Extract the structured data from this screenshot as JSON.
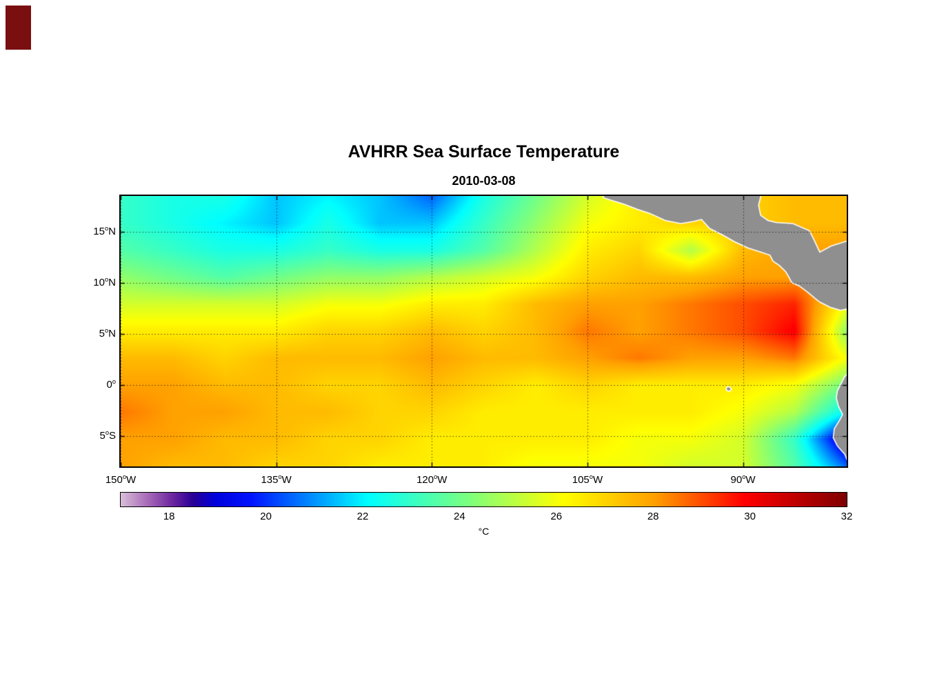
{
  "figure": {
    "title": "AVHRR Sea Surface Temperature",
    "date": "2010-03-08"
  },
  "artifact": {
    "color": "#7a0f10"
  },
  "axes": {
    "degree_symbol": "o",
    "yticks": [
      {
        "num": "15",
        "suffix": "N",
        "lat": 15
      },
      {
        "num": "10",
        "suffix": "N",
        "lat": 10
      },
      {
        "num": "5",
        "suffix": "N",
        "lat": 5
      },
      {
        "num": "0",
        "suffix": "",
        "lat": 0
      },
      {
        "num": "5",
        "suffix": "S",
        "lat": -5
      }
    ],
    "xticks": [
      {
        "num": "150",
        "suffix": "W",
        "lon": -150
      },
      {
        "num": "135",
        "suffix": "W",
        "lon": -135
      },
      {
        "num": "120",
        "suffix": "W",
        "lon": -120
      },
      {
        "num": "105",
        "suffix": "W",
        "lon": -105
      },
      {
        "num": "90",
        "suffix": "W",
        "lon": -90
      }
    ]
  },
  "colorbar": {
    "label": "°C",
    "min": 17,
    "max": 32,
    "tick_values": [
      18,
      20,
      22,
      24,
      26,
      28,
      30,
      32
    ]
  },
  "chart_data": {
    "type": "heatmap",
    "title": "AVHRR Sea Surface Temperature",
    "subtitle": "2010-03-08",
    "units": "°C",
    "lon_range": [
      -150,
      -80
    ],
    "lat_range": [
      -8,
      18.5
    ],
    "grid_lons": [
      -150,
      -145,
      -140,
      -135,
      -130,
      -125,
      -120,
      -115,
      -110,
      -105,
      -100,
      -95,
      -90,
      -85,
      -80
    ],
    "grid_lats": [
      18.5,
      15.85,
      13.2,
      10.55,
      7.9,
      5.25,
      2.6,
      -0.05,
      -2.7,
      -5.35,
      -8.0
    ],
    "sst_grid_degC": [
      [
        23.0,
        22.5,
        22.5,
        21.5,
        22.0,
        21.5,
        20.5,
        22.5,
        24.0,
        25.5,
        26.5,
        27.0,
        27.0,
        27.5,
        27.5
      ],
      [
        23.0,
        22.5,
        22.0,
        21.5,
        22.5,
        21.5,
        21.5,
        23.0,
        24.5,
        26.0,
        26.5,
        27.0,
        27.0,
        27.5,
        27.5
      ],
      [
        23.5,
        23.0,
        22.5,
        22.5,
        23.0,
        22.5,
        22.5,
        23.5,
        25.0,
        26.5,
        27.0,
        25.0,
        27.5,
        28.0,
        28.0
      ],
      [
        24.5,
        24.0,
        23.5,
        24.0,
        24.5,
        24.5,
        25.0,
        25.5,
        26.0,
        27.0,
        27.5,
        27.5,
        28.0,
        28.0,
        28.5
      ],
      [
        25.5,
        25.5,
        25.5,
        25.5,
        26.0,
        26.0,
        26.5,
        26.5,
        27.5,
        28.0,
        28.0,
        28.5,
        29.0,
        29.5,
        26.0
      ],
      [
        26.5,
        26.5,
        26.5,
        26.5,
        27.0,
        27.0,
        27.5,
        27.0,
        27.5,
        28.5,
        28.0,
        28.5,
        29.0,
        30.0,
        24.5
      ],
      [
        27.5,
        27.5,
        27.0,
        27.5,
        27.5,
        27.5,
        28.0,
        27.5,
        27.5,
        28.0,
        28.5,
        28.0,
        28.0,
        28.5,
        26.0
      ],
      [
        28.0,
        28.0,
        27.5,
        27.5,
        27.0,
        27.0,
        27.5,
        27.0,
        26.5,
        27.0,
        26.5,
        26.5,
        26.5,
        26.0,
        24.0
      ],
      [
        28.5,
        28.0,
        28.0,
        27.5,
        27.5,
        27.0,
        27.0,
        26.5,
        26.5,
        26.5,
        26.5,
        26.5,
        26.0,
        25.0,
        22.0
      ],
      [
        28.0,
        28.0,
        27.5,
        27.5,
        27.0,
        27.0,
        26.5,
        26.5,
        26.5,
        26.5,
        26.0,
        26.0,
        25.5,
        23.0,
        18.5
      ],
      [
        28.0,
        27.5,
        27.5,
        27.0,
        27.0,
        26.5,
        26.5,
        26.5,
        26.0,
        26.0,
        26.0,
        25.5,
        25.5,
        23.5,
        20.5
      ]
    ],
    "colormap": {
      "min": 17,
      "max": 32,
      "stops": [
        [
          0.0,
          [
            216,
            191,
            216
          ]
        ],
        [
          0.035,
          [
            170,
            110,
            185
          ]
        ],
        [
          0.07,
          [
            110,
            40,
            160
          ]
        ],
        [
          0.1,
          [
            40,
            0,
            150
          ]
        ],
        [
          0.13,
          [
            0,
            0,
            220
          ]
        ],
        [
          0.18,
          [
            0,
            20,
            255
          ]
        ],
        [
          0.34,
          [
            0,
            255,
            255
          ]
        ],
        [
          0.475,
          [
            120,
            255,
            130
          ]
        ],
        [
          0.61,
          [
            255,
            255,
            0
          ]
        ],
        [
          0.735,
          [
            255,
            160,
            0
          ]
        ],
        [
          0.86,
          [
            255,
            0,
            0
          ]
        ],
        [
          1.0,
          [
            127,
            0,
            0
          ]
        ]
      ]
    },
    "land": {
      "fill": "#8f8f8f",
      "outline": "#ffffff",
      "polygons": [
        {
          "name": "central-america",
          "points": [
            [
              -103.6,
              18.8
            ],
            [
              -103.4,
              18.3
            ],
            [
              -101.5,
              17.7
            ],
            [
              -100.2,
              17.2
            ],
            [
              -99,
              16.8
            ],
            [
              -97.5,
              16.1
            ],
            [
              -96,
              15.8
            ],
            [
              -94.8,
              16.0
            ],
            [
              -94,
              16.2
            ],
            [
              -93.2,
              15.3
            ],
            [
              -92,
              14.7
            ],
            [
              -90.8,
              14.0
            ],
            [
              -89.5,
              13.4
            ],
            [
              -88.3,
              13.0
            ],
            [
              -87.4,
              12.7
            ],
            [
              -87.1,
              12.1
            ],
            [
              -86.5,
              11.7
            ],
            [
              -85.9,
              11.1
            ],
            [
              -85.6,
              10.6
            ],
            [
              -85.3,
              10.0
            ],
            [
              -84.6,
              9.7
            ],
            [
              -83.8,
              9.1
            ],
            [
              -83.1,
              8.5
            ],
            [
              -82.6,
              8.1
            ],
            [
              -81.6,
              7.6
            ],
            [
              -80.6,
              7.3
            ],
            [
              -79.6,
              7.5
            ],
            [
              -79.6,
              14.2
            ],
            [
              -81.5,
              13.6
            ],
            [
              -82.6,
              13.0
            ],
            [
              -83.2,
              14.3
            ],
            [
              -83.6,
              15.1
            ],
            [
              -85.2,
              15.8
            ],
            [
              -86.8,
              15.9
            ],
            [
              -87.6,
              16.1
            ],
            [
              -88.3,
              16.6
            ],
            [
              -88.5,
              17.6
            ],
            [
              -88.2,
              18.8
            ]
          ]
        },
        {
          "name": "south-america",
          "points": [
            [
              -79.6,
              1.4
            ],
            [
              -80.2,
              0.8
            ],
            [
              -80.5,
              0.2
            ],
            [
              -80.9,
              -0.6
            ],
            [
              -81.0,
              -1.3
            ],
            [
              -80.8,
              -2.1
            ],
            [
              -80.4,
              -2.9
            ],
            [
              -80.7,
              -3.5
            ],
            [
              -81.2,
              -4.3
            ],
            [
              -81.3,
              -5.2
            ],
            [
              -80.9,
              -6.0
            ],
            [
              -80.2,
              -6.8
            ],
            [
              -79.9,
              -7.5
            ],
            [
              -79.6,
              -8.3
            ]
          ]
        },
        {
          "name": "galapagos-island",
          "points": [
            [
              -91.6,
              -0.25
            ],
            [
              -91.3,
              -0.18
            ],
            [
              -91.12,
              -0.45
            ],
            [
              -91.35,
              -0.66
            ],
            [
              -91.62,
              -0.5
            ]
          ]
        }
      ]
    },
    "grid_lines": {
      "style": "dotted",
      "color": "#000000"
    }
  }
}
